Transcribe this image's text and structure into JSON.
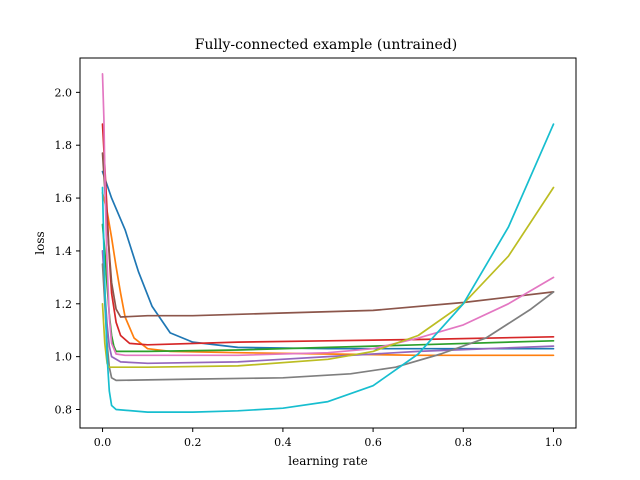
{
  "chart_data": {
    "type": "line",
    "title": "Fully-connected example (untrained)",
    "xlabel": "learning rate",
    "ylabel": "loss",
    "xlim": [
      -0.05,
      1.05
    ],
    "ylim": [
      0.73,
      2.13
    ],
    "xticks": [
      0.0,
      0.2,
      0.4,
      0.6,
      0.8,
      1.0
    ],
    "xtick_labels": [
      "0.0",
      "0.2",
      "0.4",
      "0.6",
      "0.8",
      "1.0"
    ],
    "yticks": [
      0.8,
      1.0,
      1.2,
      1.4,
      1.6,
      1.8,
      2.0
    ],
    "ytick_labels": [
      "0.8",
      "1.0",
      "1.2",
      "1.4",
      "1.6",
      "1.8",
      "2.0"
    ],
    "grid": false,
    "legend": "none",
    "series": [
      {
        "color": "#1f77b4",
        "points": [
          [
            0.0,
            1.7
          ],
          [
            0.02,
            1.6
          ],
          [
            0.05,
            1.48
          ],
          [
            0.08,
            1.32
          ],
          [
            0.11,
            1.19
          ],
          [
            0.15,
            1.09
          ],
          [
            0.2,
            1.055
          ],
          [
            0.3,
            1.035
          ],
          [
            0.5,
            1.03
          ],
          [
            0.7,
            1.03
          ],
          [
            1.0,
            1.03
          ]
        ]
      },
      {
        "color": "#ff7f0e",
        "points": [
          [
            0.0,
            1.62
          ],
          [
            0.01,
            1.55
          ],
          [
            0.02,
            1.45
          ],
          [
            0.03,
            1.34
          ],
          [
            0.04,
            1.24
          ],
          [
            0.05,
            1.15
          ],
          [
            0.07,
            1.07
          ],
          [
            0.1,
            1.03
          ],
          [
            0.15,
            1.02
          ],
          [
            0.3,
            1.015
          ],
          [
            0.5,
            1.01
          ],
          [
            0.7,
            1.005
          ],
          [
            1.0,
            1.005
          ]
        ]
      },
      {
        "color": "#2ca02c",
        "points": [
          [
            0.0,
            1.5
          ],
          [
            0.005,
            1.4
          ],
          [
            0.01,
            1.27
          ],
          [
            0.015,
            1.16
          ],
          [
            0.02,
            1.08
          ],
          [
            0.025,
            1.04
          ],
          [
            0.03,
            1.02
          ],
          [
            0.1,
            1.02
          ],
          [
            0.3,
            1.025
          ],
          [
            0.5,
            1.035
          ],
          [
            0.7,
            1.045
          ],
          [
            1.0,
            1.06
          ]
        ]
      },
      {
        "color": "#d62728",
        "points": [
          [
            0.0,
            1.88
          ],
          [
            0.005,
            1.72
          ],
          [
            0.01,
            1.55
          ],
          [
            0.015,
            1.38
          ],
          [
            0.02,
            1.24
          ],
          [
            0.03,
            1.13
          ],
          [
            0.04,
            1.08
          ],
          [
            0.06,
            1.05
          ],
          [
            0.1,
            1.045
          ],
          [
            0.3,
            1.055
          ],
          [
            0.5,
            1.06
          ],
          [
            0.7,
            1.065
          ],
          [
            1.0,
            1.075
          ]
        ]
      },
      {
        "color": "#9467bd",
        "points": [
          [
            0.0,
            1.4
          ],
          [
            0.005,
            1.25
          ],
          [
            0.01,
            1.12
          ],
          [
            0.015,
            1.04
          ],
          [
            0.02,
            1.0
          ],
          [
            0.04,
            0.98
          ],
          [
            0.1,
            0.975
          ],
          [
            0.3,
            0.98
          ],
          [
            0.5,
            1.0
          ],
          [
            0.7,
            1.02
          ],
          [
            1.0,
            1.04
          ]
        ]
      },
      {
        "color": "#8c564b",
        "points": [
          [
            0.0,
            1.77
          ],
          [
            0.01,
            1.5
          ],
          [
            0.02,
            1.28
          ],
          [
            0.03,
            1.18
          ],
          [
            0.04,
            1.15
          ],
          [
            0.1,
            1.155
          ],
          [
            0.2,
            1.155
          ],
          [
            0.4,
            1.165
          ],
          [
            0.6,
            1.175
          ],
          [
            0.8,
            1.205
          ],
          [
            0.9,
            1.225
          ],
          [
            1.0,
            1.245
          ]
        ]
      },
      {
        "color": "#e377c2",
        "points": [
          [
            0.0,
            2.07
          ],
          [
            0.003,
            1.9
          ],
          [
            0.006,
            1.6
          ],
          [
            0.01,
            1.35
          ],
          [
            0.015,
            1.15
          ],
          [
            0.02,
            1.05
          ],
          [
            0.03,
            1.01
          ],
          [
            0.05,
            1.005
          ],
          [
            0.3,
            1.005
          ],
          [
            0.5,
            1.015
          ],
          [
            0.6,
            1.03
          ],
          [
            0.7,
            1.07
          ],
          [
            0.8,
            1.12
          ],
          [
            0.9,
            1.2
          ],
          [
            1.0,
            1.3
          ]
        ]
      },
      {
        "color": "#7f7f7f",
        "points": [
          [
            0.0,
            1.35
          ],
          [
            0.005,
            1.2
          ],
          [
            0.01,
            1.05
          ],
          [
            0.015,
            0.96
          ],
          [
            0.02,
            0.92
          ],
          [
            0.03,
            0.91
          ],
          [
            0.1,
            0.912
          ],
          [
            0.2,
            0.915
          ],
          [
            0.4,
            0.92
          ],
          [
            0.55,
            0.935
          ],
          [
            0.65,
            0.96
          ],
          [
            0.75,
            1.01
          ],
          [
            0.85,
            1.07
          ],
          [
            0.95,
            1.18
          ],
          [
            1.0,
            1.245
          ]
        ]
      },
      {
        "color": "#bcbd22",
        "points": [
          [
            0.0,
            1.2
          ],
          [
            0.005,
            1.05
          ],
          [
            0.01,
            0.975
          ],
          [
            0.015,
            0.96
          ],
          [
            0.1,
            0.96
          ],
          [
            0.3,
            0.965
          ],
          [
            0.5,
            0.99
          ],
          [
            0.6,
            1.02
          ],
          [
            0.7,
            1.08
          ],
          [
            0.8,
            1.2
          ],
          [
            0.9,
            1.38
          ],
          [
            1.0,
            1.64
          ]
        ]
      },
      {
        "color": "#17becf",
        "points": [
          [
            0.0,
            1.64
          ],
          [
            0.003,
            1.4
          ],
          [
            0.006,
            1.2
          ],
          [
            0.01,
            1.0
          ],
          [
            0.015,
            0.87
          ],
          [
            0.02,
            0.815
          ],
          [
            0.03,
            0.8
          ],
          [
            0.1,
            0.79
          ],
          [
            0.2,
            0.79
          ],
          [
            0.3,
            0.795
          ],
          [
            0.4,
            0.805
          ],
          [
            0.5,
            0.83
          ],
          [
            0.6,
            0.89
          ],
          [
            0.7,
            1.01
          ],
          [
            0.8,
            1.2
          ],
          [
            0.9,
            1.49
          ],
          [
            1.0,
            1.88
          ]
        ]
      }
    ]
  }
}
